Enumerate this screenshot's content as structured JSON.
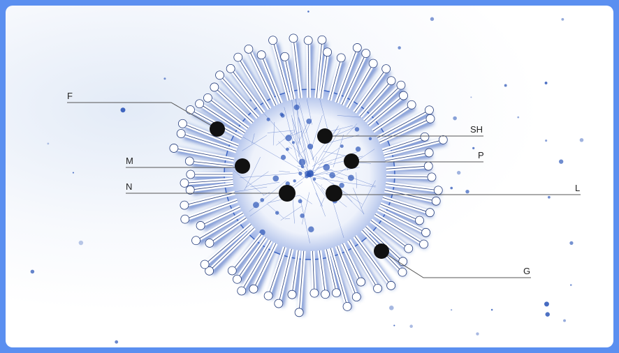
{
  "labels": {
    "F": "F",
    "SH": "SH",
    "P": "P",
    "M": "M",
    "N": "N",
    "L": "L",
    "G": "G"
  },
  "colors": {
    "frame": "#5b8ff0",
    "virus_blue": "#2c56b8",
    "marker": "#111111",
    "leader_line": "#555555"
  }
}
